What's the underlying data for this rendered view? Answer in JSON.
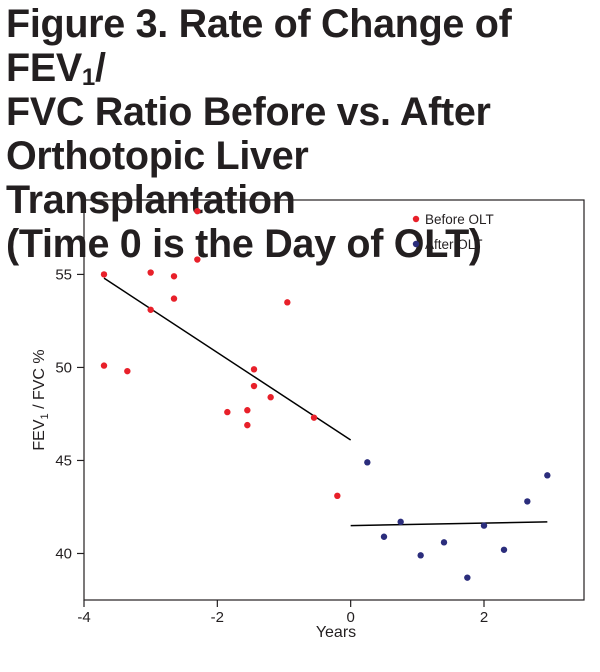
{
  "title": {
    "line1_a": "Figure 3.  Rate of Change of FEV",
    "line1_sub": "1",
    "line1_b": "/",
    "line2": "FVC Ratio Before vs. After",
    "line3": "Orthotopic Liver Transplantation",
    "line4": "(Time 0 is the Day of OLT)"
  },
  "chart_data": {
    "type": "scatter",
    "xlabel": "Years",
    "ylabel_main": "FEV",
    "ylabel_sub": "1",
    "ylabel_rest": " / FVC %",
    "xlim": [
      -4,
      3.5
    ],
    "ylim": [
      37.5,
      59
    ],
    "x_ticks": [
      -4,
      -2,
      0,
      2
    ],
    "y_ticks": [
      40,
      45,
      50,
      55
    ],
    "legend_position": "top-right",
    "series": [
      {
        "name": "Before OLT",
        "color": "#e8202a",
        "points": [
          [
            -3.7,
            55.0
          ],
          [
            -3.7,
            50.1
          ],
          [
            -3.35,
            49.8
          ],
          [
            -3.0,
            55.1
          ],
          [
            -3.0,
            53.1
          ],
          [
            -2.65,
            54.9
          ],
          [
            -2.65,
            53.7
          ],
          [
            -2.3,
            58.4
          ],
          [
            -2.3,
            55.8
          ],
          [
            -1.85,
            47.6
          ],
          [
            -1.55,
            47.7
          ],
          [
            -1.55,
            46.9
          ],
          [
            -1.45,
            49.9
          ],
          [
            -1.45,
            49.0
          ],
          [
            -1.2,
            48.4
          ],
          [
            -0.95,
            53.5
          ],
          [
            -0.55,
            47.3
          ],
          [
            -0.2,
            43.1
          ]
        ],
        "fit_line": [
          [
            -3.7,
            54.8
          ],
          [
            0.0,
            46.1
          ]
        ]
      },
      {
        "name": "After OLT",
        "color": "#2b2d7c",
        "points": [
          [
            0.25,
            44.9
          ],
          [
            0.5,
            40.9
          ],
          [
            0.75,
            41.7
          ],
          [
            1.05,
            39.9
          ],
          [
            1.4,
            40.6
          ],
          [
            1.75,
            38.7
          ],
          [
            2.0,
            41.5
          ],
          [
            2.3,
            40.2
          ],
          [
            2.65,
            42.8
          ],
          [
            2.95,
            44.2
          ]
        ],
        "fit_line": [
          [
            0.0,
            41.5
          ],
          [
            2.95,
            41.7
          ]
        ]
      }
    ]
  }
}
